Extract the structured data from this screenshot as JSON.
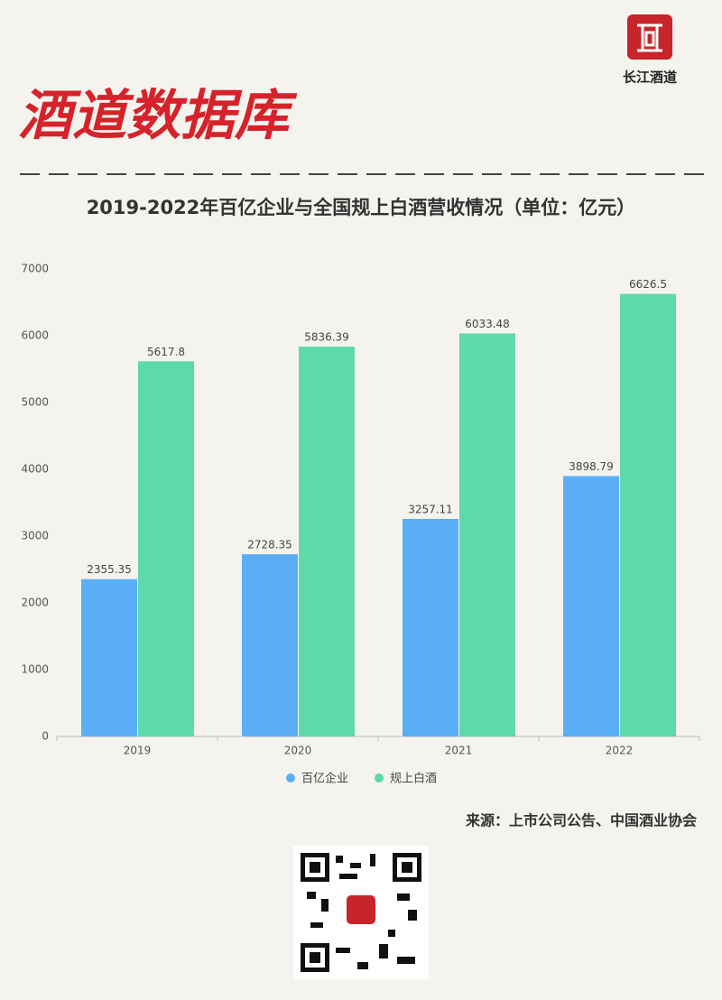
{
  "header": {
    "brand": "酒道数据库",
    "logo_text": "长江酒道"
  },
  "chart_data": {
    "type": "bar",
    "title": "2019-2022年百亿企业与全国规上白酒营收情况（单位：亿元）",
    "categories": [
      "2019",
      "2020",
      "2021",
      "2022"
    ],
    "series": [
      {
        "name": "百亿企业",
        "color": "#5aaef5",
        "values": [
          2355.35,
          2728.35,
          3257.11,
          3898.79
        ]
      },
      {
        "name": "规上白酒",
        "color": "#5ed9a9",
        "values": [
          5617.8,
          5836.39,
          6033.48,
          6626.5
        ]
      }
    ],
    "ylim": [
      0,
      7000
    ],
    "yticks": [
      0,
      1000,
      2000,
      3000,
      4000,
      5000,
      6000,
      7000
    ],
    "grid": false,
    "source": "来源：上市公司公告、中国酒业协会"
  }
}
